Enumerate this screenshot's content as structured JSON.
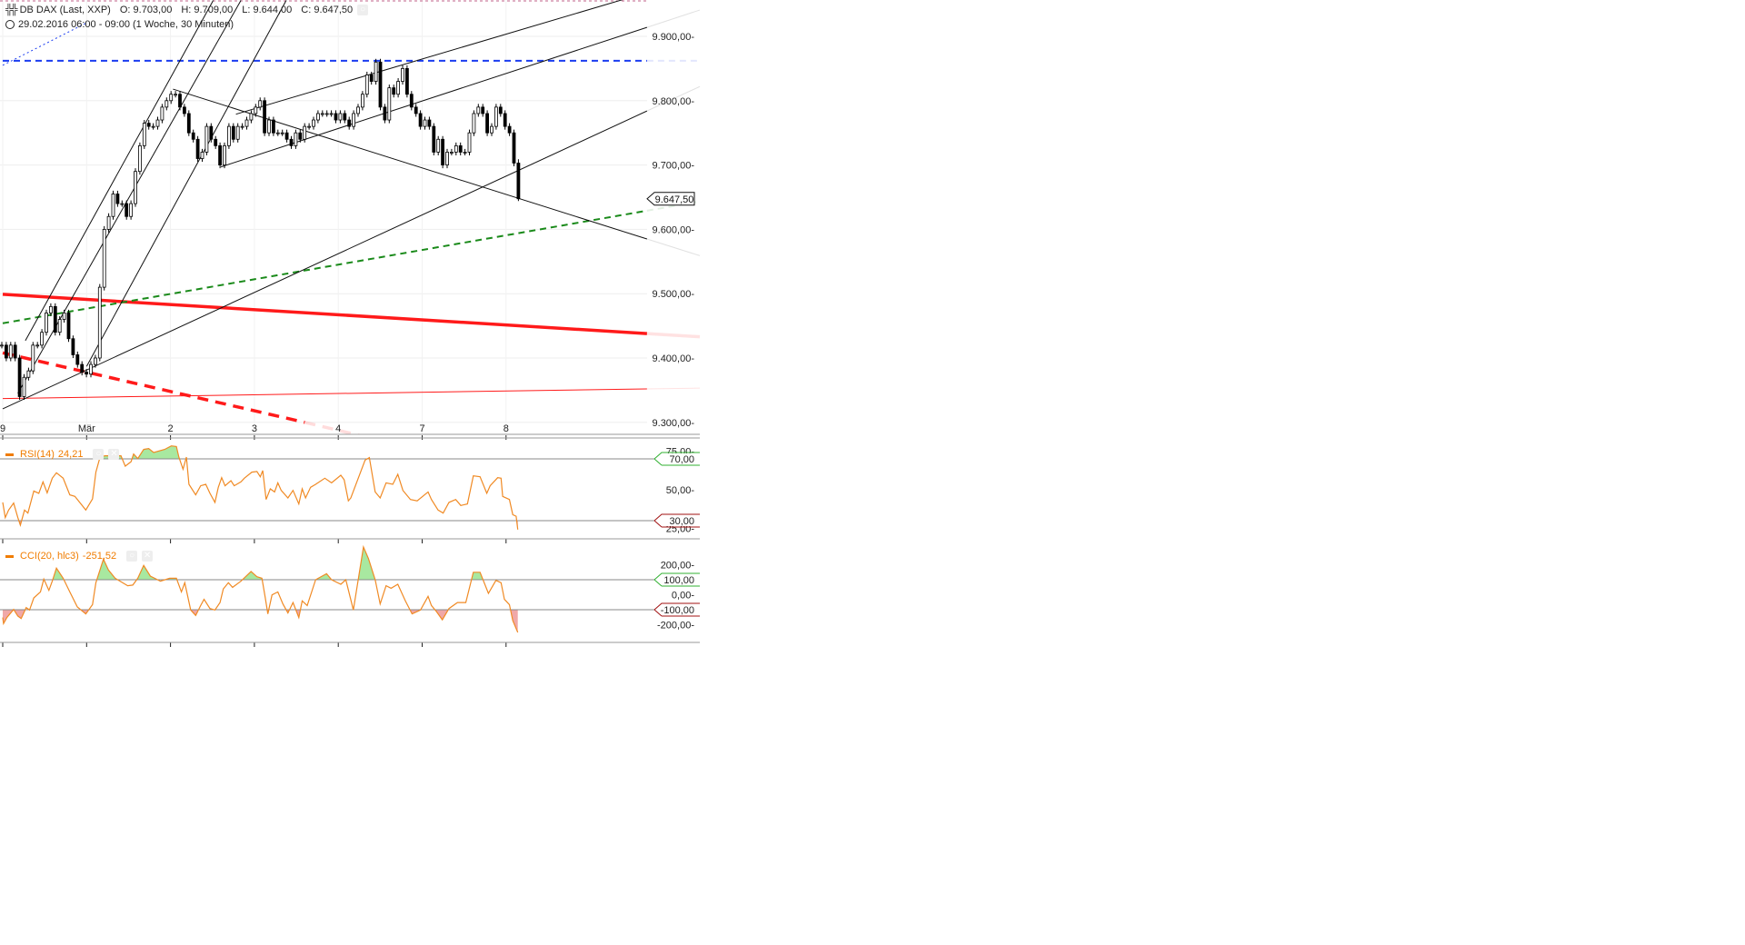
{
  "header": {
    "instrument": "DB DAX (Last, XXP)",
    "open": "O: 9.703,00",
    "high": "H: 9.709,00",
    "low": "L: 9.644,00",
    "close": "C: 9.647,50",
    "period": "29.02.2016 06:00 - 09:00 (1 Woche, 30 Minuten)"
  },
  "colors": {
    "up_fill": "#ffffff",
    "candle": "#000000",
    "blue_line": "#1a3cf0",
    "red_line": "#ff1a1a",
    "green_line": "#1a8a1a",
    "indicator": "#f08a24",
    "ob_fill": "#a8e8a0",
    "os_fill": "#f0a8a8",
    "ob_border": "#30b030",
    "os_border": "#a01010"
  },
  "chart_data": [
    {
      "type": "candlestick",
      "bar_interval": "30 Minuten",
      "x_tick_labels": [
        "9",
        "Mär",
        "2",
        "3",
        "4",
        "7",
        "8"
      ],
      "y_tick_labels": [
        "9.900,00",
        "9.800,00",
        "9.700,00",
        "9.600,00",
        "9.500,00",
        "9.400,00",
        "9.300,00"
      ],
      "y_ticks": [
        9900,
        9800,
        9700,
        9600,
        9500,
        9400,
        9300
      ],
      "ylim": [
        9268,
        9956
      ],
      "last_price_label": "9.647,50",
      "last_price": 9647.5,
      "last_bar": {
        "open": 9703,
        "high": 9709,
        "low": 9644,
        "close": 9647.5
      },
      "close": [
        9420,
        9400,
        9420,
        9400,
        9340,
        9370,
        9380,
        9420,
        9420,
        9440,
        9470,
        9480,
        9440,
        9460,
        9470,
        9430,
        9405,
        9390,
        9378,
        9375,
        9390,
        9400,
        9510,
        9600,
        9620,
        9655,
        9640,
        9640,
        9620,
        9640,
        9690,
        9730,
        9765,
        9760,
        9760,
        9770,
        9790,
        9800,
        9810,
        9810,
        9790,
        9780,
        9750,
        9740,
        9710,
        9720,
        9760,
        9740,
        9730,
        9700,
        9730,
        9760,
        9740,
        9760,
        9760,
        9770,
        9780,
        9790,
        9800,
        9750,
        9770,
        9750,
        9750,
        9750,
        9740,
        9730,
        9750,
        9740,
        9760,
        9760,
        9770,
        9780,
        9780,
        9780,
        9780,
        9770,
        9780,
        9770,
        9760,
        9780,
        9790,
        9810,
        9840,
        9830,
        9860,
        9790,
        9770,
        9820,
        9810,
        9830,
        9850,
        9810,
        9790,
        9780,
        9760,
        9770,
        9760,
        9720,
        9740,
        9700,
        9720,
        9720,
        9730,
        9720,
        9720,
        9750,
        9780,
        9790,
        9780,
        9750,
        9760,
        9790,
        9780,
        9760,
        9750,
        9703,
        9647.5
      ],
      "overlays": [
        {
          "kind": "dashed",
          "color": "blue",
          "points": [
            [
              0,
              9862
            ],
            [
              7.68,
              9862
            ]
          ]
        },
        {
          "kind": "dotted",
          "color": "blue",
          "points": [
            [
              0,
              9855
            ],
            [
              1.0,
              9921
            ]
          ]
        },
        {
          "kind": "thick",
          "color": "red",
          "points": [
            [
              0,
              9499
            ],
            [
              7.68,
              9438
            ]
          ]
        },
        {
          "kind": "dashed-thick",
          "color": "red",
          "points": [
            [
              0,
              9408
            ],
            [
              3.6,
              9300
            ]
          ]
        },
        {
          "kind": "faded-dashed",
          "color": "red",
          "points": [
            [
              3.6,
              9300
            ],
            [
              4.63,
              9268
            ]
          ]
        },
        {
          "kind": "thin",
          "color": "red",
          "points": [
            [
              0,
              9337
            ],
            [
              7.68,
              9352
            ]
          ]
        },
        {
          "kind": "dashed",
          "color": "green",
          "points": [
            [
              0,
              9454
            ],
            [
              7.68,
              9629
            ]
          ]
        },
        {
          "kind": "thin",
          "color": "black",
          "points": [
            [
              0,
              9321
            ],
            [
              7.68,
              9784
            ]
          ]
        },
        {
          "kind": "thin",
          "color": "black",
          "points": [
            [
              2.03,
              9818
            ],
            [
              7.68,
              9585
            ]
          ]
        },
        {
          "kind": "thin",
          "color": "black",
          "points": [
            [
              2.6,
              9697
            ],
            [
              7.68,
              9914
            ]
          ]
        },
        {
          "kind": "thin",
          "color": "black",
          "points": [
            [
              2.78,
              9779
            ],
            [
              7.44,
              9959
            ]
          ]
        },
        {
          "kind": "thin",
          "color": "black",
          "points": [
            [
              0.27,
              9427
            ],
            [
              2.51,
              9956
            ]
          ]
        },
        {
          "kind": "thin",
          "color": "black",
          "points": [
            [
              0.18,
              9345
            ],
            [
              2.84,
              9956
            ]
          ]
        },
        {
          "kind": "thin",
          "color": "black",
          "points": [
            [
              1.0,
              9387
            ],
            [
              3.38,
              9956
            ]
          ]
        }
      ]
    },
    {
      "type": "line",
      "name": "RSI(14)",
      "last_value": "24,21",
      "y_tick_labels": [
        "75,00",
        "50,00",
        "25,00"
      ],
      "y_ticks": [
        75,
        50,
        25
      ],
      "levels": [
        {
          "value": 70,
          "label": "70,00",
          "zone": "overbought"
        },
        {
          "value": 30,
          "label": "30,00",
          "zone": "oversold"
        }
      ],
      "points": [
        [
          0,
          41.8
        ],
        [
          0.03,
          32.0
        ],
        [
          0.07,
          36.9
        ],
        [
          0.13,
          41.4
        ],
        [
          0.18,
          32.0
        ],
        [
          0.21,
          27.1
        ],
        [
          0.26,
          36.9
        ],
        [
          0.3,
          34.9
        ],
        [
          0.37,
          49.2
        ],
        [
          0.43,
          47.7
        ],
        [
          0.48,
          55.1
        ],
        [
          0.53,
          48.0
        ],
        [
          0.59,
          57.5
        ],
        [
          0.64,
          61.0
        ],
        [
          0.72,
          57.5
        ],
        [
          0.8,
          46.7
        ],
        [
          0.86,
          45.7
        ],
        [
          0.99,
          36.9
        ],
        [
          1.07,
          44.1
        ],
        [
          1.11,
          61.4
        ],
        [
          1.16,
          71.2
        ],
        [
          1.22,
          72.0
        ],
        [
          1.41,
          72.0
        ],
        [
          1.46,
          65.3
        ],
        [
          1.53,
          68.2
        ],
        [
          1.56,
          73.1
        ],
        [
          1.61,
          70.2
        ],
        [
          1.68,
          76.1
        ],
        [
          1.74,
          76.7
        ],
        [
          1.8,
          74.1
        ],
        [
          1.93,
          76.1
        ],
        [
          2.01,
          78.4
        ],
        [
          2.07,
          78.0
        ],
        [
          2.1,
          71.2
        ],
        [
          2.15,
          63.3
        ],
        [
          2.19,
          71.2
        ],
        [
          2.22,
          53.5
        ],
        [
          2.3,
          46.7
        ],
        [
          2.36,
          52.6
        ],
        [
          2.42,
          53.5
        ],
        [
          2.47,
          47.7
        ],
        [
          2.53,
          41.8
        ],
        [
          2.57,
          51.6
        ],
        [
          2.61,
          57.8
        ],
        [
          2.65,
          52.6
        ],
        [
          2.72,
          55.9
        ],
        [
          2.76,
          52.6
        ],
        [
          2.84,
          55.1
        ],
        [
          2.88,
          57.5
        ],
        [
          2.97,
          61.4
        ],
        [
          3.03,
          61.8
        ],
        [
          3.07,
          58.4
        ],
        [
          3.1,
          62.4
        ],
        [
          3.14,
          43.7
        ],
        [
          3.19,
          50.6
        ],
        [
          3.24,
          48.6
        ],
        [
          3.28,
          54.5
        ],
        [
          3.32,
          49.6
        ],
        [
          3.4,
          44.7
        ],
        [
          3.46,
          49.6
        ],
        [
          3.53,
          40.8
        ],
        [
          3.57,
          50.6
        ],
        [
          3.61,
          44.7
        ],
        [
          3.67,
          51.6
        ],
        [
          3.73,
          53.5
        ],
        [
          3.84,
          57.5
        ],
        [
          3.92,
          54.5
        ],
        [
          4.03,
          59.4
        ],
        [
          4.07,
          56.5
        ],
        [
          4.12,
          42.8
        ],
        [
          4.15,
          44.7
        ],
        [
          4.32,
          69.2
        ],
        [
          4.37,
          70.8
        ],
        [
          4.44,
          48.6
        ],
        [
          4.5,
          44.7
        ],
        [
          4.57,
          54.5
        ],
        [
          4.65,
          53.5
        ],
        [
          4.71,
          60.0
        ],
        [
          4.77,
          49.6
        ],
        [
          4.86,
          43.7
        ],
        [
          4.94,
          42.8
        ],
        [
          5.07,
          48.6
        ],
        [
          5.11,
          43.7
        ],
        [
          5.19,
          36.9
        ],
        [
          5.25,
          34.9
        ],
        [
          5.32,
          41.8
        ],
        [
          5.4,
          43.7
        ],
        [
          5.46,
          39.8
        ],
        [
          5.54,
          40.8
        ],
        [
          5.61,
          59.0
        ],
        [
          5.69,
          58.4
        ],
        [
          5.77,
          47.7
        ],
        [
          5.81,
          52.6
        ],
        [
          5.9,
          57.8
        ],
        [
          5.94,
          57.5
        ],
        [
          5.96,
          45.7
        ],
        [
          6.04,
          43.7
        ],
        [
          6.08,
          33.9
        ],
        [
          6.12,
          32.9
        ],
        [
          6.14,
          24.21
        ]
      ]
    },
    {
      "type": "line",
      "name": "CCI(20, hlc3)",
      "last_value": "-251,52",
      "y_tick_labels": [
        "200,00",
        "0,00",
        "-200,00"
      ],
      "y_ticks": [
        200,
        0,
        -200
      ],
      "levels": [
        {
          "value": 100,
          "label": "100,00",
          "zone": "overbought"
        },
        {
          "value": -100,
          "label": "-100,00",
          "zone": "oversold"
        }
      ],
      "points": [
        [
          0,
          -152
        ],
        [
          0.01,
          -193
        ],
        [
          0.05,
          -152
        ],
        [
          0.13,
          -98
        ],
        [
          0.18,
          -142
        ],
        [
          0.22,
          -159
        ],
        [
          0.28,
          -86
        ],
        [
          0.32,
          -102
        ],
        [
          0.37,
          -21
        ],
        [
          0.45,
          19
        ],
        [
          0.49,
          104
        ],
        [
          0.55,
          29
        ],
        [
          0.59,
          90
        ],
        [
          0.64,
          177
        ],
        [
          0.72,
          110
        ],
        [
          0.8,
          19
        ],
        [
          0.89,
          -82
        ],
        [
          0.99,
          -128
        ],
        [
          1.07,
          -66
        ],
        [
          1.11,
          80
        ],
        [
          1.2,
          237
        ],
        [
          1.26,
          165
        ],
        [
          1.34,
          110
        ],
        [
          1.49,
          60
        ],
        [
          1.55,
          64
        ],
        [
          1.61,
          110
        ],
        [
          1.68,
          195
        ],
        [
          1.76,
          124
        ],
        [
          1.88,
          90
        ],
        [
          1.99,
          110
        ],
        [
          2.07,
          110
        ],
        [
          2.13,
          19
        ],
        [
          2.17,
          80
        ],
        [
          2.24,
          -102
        ],
        [
          2.3,
          -138
        ],
        [
          2.36,
          -72
        ],
        [
          2.4,
          -31
        ],
        [
          2.47,
          -92
        ],
        [
          2.53,
          -102
        ],
        [
          2.59,
          -52
        ],
        [
          2.63,
          39
        ],
        [
          2.69,
          80
        ],
        [
          2.74,
          49
        ],
        [
          2.84,
          90
        ],
        [
          2.96,
          155
        ],
        [
          3.03,
          120
        ],
        [
          3.09,
          110
        ],
        [
          3.13,
          -21
        ],
        [
          3.16,
          -128
        ],
        [
          3.21,
          -1
        ],
        [
          3.28,
          19
        ],
        [
          3.34,
          -62
        ],
        [
          3.4,
          -122
        ],
        [
          3.46,
          -52
        ],
        [
          3.53,
          -152
        ],
        [
          3.57,
          -41
        ],
        [
          3.63,
          -72
        ],
        [
          3.73,
          100
        ],
        [
          3.86,
          140
        ],
        [
          3.92,
          100
        ],
        [
          4.03,
          70
        ],
        [
          4.09,
          100
        ],
        [
          4.18,
          -102
        ],
        [
          4.3,
          318
        ],
        [
          4.36,
          241
        ],
        [
          4.44,
          100
        ],
        [
          4.5,
          -62
        ],
        [
          4.57,
          60
        ],
        [
          4.63,
          43
        ],
        [
          4.71,
          70
        ],
        [
          4.8,
          -41
        ],
        [
          4.88,
          -128
        ],
        [
          4.98,
          -102
        ],
        [
          5.07,
          -11
        ],
        [
          5.11,
          -72
        ],
        [
          5.17,
          -112
        ],
        [
          5.24,
          -167
        ],
        [
          5.32,
          -92
        ],
        [
          5.42,
          -52
        ],
        [
          5.52,
          -52
        ],
        [
          5.61,
          150
        ],
        [
          5.69,
          150
        ],
        [
          5.79,
          9
        ],
        [
          5.88,
          96
        ],
        [
          5.94,
          80
        ],
        [
          5.98,
          -31
        ],
        [
          6.04,
          -66
        ],
        [
          6.08,
          -173
        ],
        [
          6.14,
          -251.5
        ]
      ]
    }
  ]
}
